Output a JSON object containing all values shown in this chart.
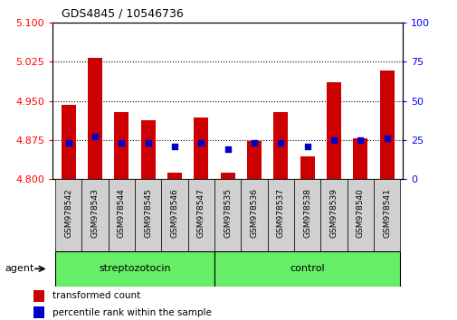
{
  "title": "GDS4845 / 10546736",
  "samples": [
    "GSM978542",
    "GSM978543",
    "GSM978544",
    "GSM978545",
    "GSM978546",
    "GSM978547",
    "GSM978535",
    "GSM978536",
    "GSM978537",
    "GSM978538",
    "GSM978539",
    "GSM978540",
    "GSM978541"
  ],
  "transformed_count": [
    4.943,
    5.033,
    4.928,
    4.912,
    4.813,
    4.918,
    4.813,
    4.873,
    4.928,
    4.843,
    4.985,
    4.878,
    5.008
  ],
  "percentile_rank": [
    23,
    27,
    23,
    23,
    21,
    23,
    19,
    23,
    23,
    21,
    25,
    25,
    26
  ],
  "group": [
    "streptozotocin",
    "streptozotocin",
    "streptozotocin",
    "streptozotocin",
    "streptozotocin",
    "streptozotocin",
    "control",
    "control",
    "control",
    "control",
    "control",
    "control",
    "control"
  ],
  "ylim_left": [
    4.8,
    5.1
  ],
  "ylim_right": [
    0,
    100
  ],
  "yticks_left": [
    4.8,
    4.875,
    4.95,
    5.025,
    5.1
  ],
  "yticks_right": [
    0,
    25,
    50,
    75,
    100
  ],
  "bar_color": "#cc0000",
  "dot_color": "#0000cc",
  "green_color": "#66ee66",
  "legend_bar_label": "transformed count",
  "legend_dot_label": "percentile rank within the sample",
  "agent_label": "agent",
  "chart_bg": "#ffffff",
  "xtick_bg": "#d0d0d0",
  "bar_width": 0.55
}
